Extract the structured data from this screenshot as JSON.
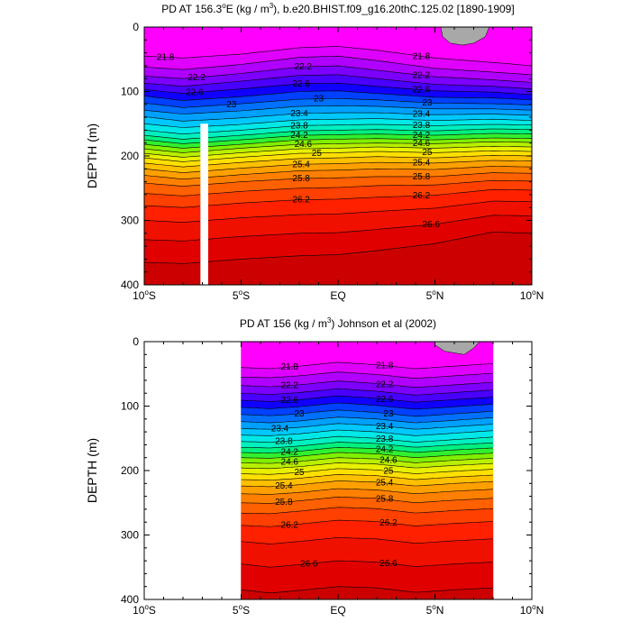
{
  "chart_data": [
    {
      "type": "contour",
      "title": "PD AT 156.3°E (kg / m³), b.e20.BHIST.f09_g16.20thC.125.02 [1890-1909]",
      "title_parts": {
        "pre": "PD AT 156.3",
        "deg": "o",
        "mid": "E (kg / m",
        "sup": "3",
        "post": "), b.e20.BHIST.f09_g16.20thC.125.02 [1890-1909]"
      },
      "ylabel": "DEPTH (m)",
      "xlim": [
        -10,
        10
      ],
      "ylim": [
        0,
        400
      ],
      "y_inverted": true,
      "x_ticks": [
        {
          "v": -10,
          "num": "10",
          "sup": "o",
          "hem": "S"
        },
        {
          "v": -5,
          "num": "5",
          "sup": "o",
          "hem": "S"
        },
        {
          "v": 0,
          "num": "EQ",
          "sup": "",
          "hem": ""
        },
        {
          "v": 5,
          "num": "5",
          "sup": "o",
          "hem": "N"
        },
        {
          "v": 10,
          "num": "10",
          "sup": "o",
          "hem": "N"
        }
      ],
      "y_ticks": [
        "0",
        "100",
        "200",
        "300",
        "400"
      ],
      "x_data_range": [
        -10,
        10
      ],
      "missing_column": [
        -7.1,
        -6.7
      ],
      "land_mask": [
        [
          5.3,
          0
        ],
        [
          5.4,
          15
        ],
        [
          5.8,
          25
        ],
        [
          6.4,
          28
        ],
        [
          7.0,
          25
        ],
        [
          7.6,
          15
        ],
        [
          7.8,
          0
        ]
      ],
      "contour_levels": [
        21.8,
        22.0,
        22.2,
        22.4,
        22.6,
        22.8,
        23.0,
        23.2,
        23.4,
        23.6,
        23.8,
        24.0,
        24.2,
        24.4,
        24.6,
        24.8,
        25.0,
        25.2,
        25.4,
        25.6,
        25.8,
        26.0,
        26.2,
        26.4,
        26.6,
        26.8
      ],
      "contour_depths": [
        {
          "x": -10,
          "d": [
            45,
            62,
            76,
            87,
            97,
            107,
            118,
            129,
            139,
            150,
            160,
            168,
            175,
            182,
            189,
            196,
            203,
            211,
            220,
            230,
            242,
            258,
            277,
            300,
            330,
            365
          ]
        },
        {
          "x": -8,
          "d": [
            48,
            66,
            80,
            92,
            103,
            114,
            125,
            135,
            146,
            156,
            166,
            174,
            181,
            188,
            195,
            202,
            209,
            217,
            226,
            236,
            247,
            262,
            280,
            303,
            332,
            367
          ]
        },
        {
          "x": -5,
          "d": [
            42,
            58,
            72,
            84,
            96,
            108,
            119,
            130,
            141,
            151,
            160,
            168,
            175,
            182,
            188,
            195,
            202,
            210,
            219,
            229,
            240,
            255,
            273,
            296,
            325,
            360
          ]
        },
        {
          "x": -2,
          "d": [
            32,
            47,
            62,
            75,
            88,
            100,
            112,
            123,
            134,
            144,
            153,
            161,
            168,
            175,
            182,
            189,
            196,
            204,
            213,
            223,
            235,
            250,
            268,
            291,
            320,
            355
          ]
        },
        {
          "x": 0,
          "d": [
            30,
            45,
            60,
            74,
            87,
            99,
            111,
            122,
            133,
            143,
            152,
            160,
            167,
            174,
            181,
            188,
            195,
            203,
            212,
            222,
            234,
            249,
            267,
            290,
            319,
            353
          ]
        },
        {
          "x": 2,
          "d": [
            36,
            52,
            67,
            80,
            92,
            103,
            113,
            123,
            133,
            142,
            151,
            159,
            166,
            173,
            180,
            186,
            193,
            201,
            210,
            220,
            232,
            246,
            264,
            286,
            314,
            347
          ]
        },
        {
          "x": 5,
          "d": [
            48,
            64,
            77,
            89,
            99,
            109,
            118,
            127,
            136,
            145,
            153,
            161,
            168,
            175,
            181,
            188,
            195,
            203,
            211,
            221,
            232,
            245,
            261,
            281,
            306,
            336
          ]
        },
        {
          "x": 8,
          "d": [
            55,
            70,
            82,
            92,
            101,
            110,
            119,
            127,
            135,
            143,
            151,
            158,
            165,
            172,
            178,
            185,
            192,
            199,
            207,
            216,
            226,
            238,
            252,
            270,
            292,
            318
          ]
        },
        {
          "x": 10,
          "d": [
            60,
            74,
            86,
            96,
            105,
            113,
            121,
            129,
            137,
            145,
            152,
            159,
            166,
            173,
            179,
            186,
            193,
            200,
            208,
            217,
            227,
            239,
            253,
            271,
            293,
            320
          ]
        }
      ],
      "contour_labels": [
        {
          "text": "21.8",
          "x": -8.9,
          "level": 21.8
        },
        {
          "text": "22.2",
          "x": -7.3,
          "level": 22.2
        },
        {
          "text": "22.6",
          "x": -7.4,
          "level": 22.6
        },
        {
          "text": "23",
          "x": -5.5,
          "level": 23.0
        },
        {
          "text": "22.2",
          "x": -1.8,
          "level": 22.2
        },
        {
          "text": "22.6",
          "x": -1.9,
          "level": 22.6
        },
        {
          "text": "23",
          "x": -1.0,
          "level": 23.0
        },
        {
          "text": "23.4",
          "x": -2.0,
          "level": 23.4
        },
        {
          "text": "23.8",
          "x": -2.0,
          "level": 23.8
        },
        {
          "text": "24.2",
          "x": -2.0,
          "level": 24.2
        },
        {
          "text": "24.6",
          "x": -1.8,
          "level": 24.6
        },
        {
          "text": "25",
          "x": -1.1,
          "level": 25.0
        },
        {
          "text": "25.4",
          "x": -1.9,
          "level": 25.4
        },
        {
          "text": "25.8",
          "x": -1.9,
          "level": 25.8
        },
        {
          "text": "26.2",
          "x": -1.9,
          "level": 26.2
        },
        {
          "text": "21.8",
          "x": 4.3,
          "level": 21.8
        },
        {
          "text": "22.2",
          "x": 4.3,
          "level": 22.2
        },
        {
          "text": "22.6",
          "x": 4.3,
          "level": 22.6
        },
        {
          "text": "23",
          "x": 4.6,
          "level": 23.0
        },
        {
          "text": "23.4",
          "x": 4.3,
          "level": 23.4
        },
        {
          "text": "23.8",
          "x": 4.3,
          "level": 23.8
        },
        {
          "text": "24.2",
          "x": 4.3,
          "level": 24.2
        },
        {
          "text": "24.6",
          "x": 4.3,
          "level": 24.6
        },
        {
          "text": "25",
          "x": 4.6,
          "level": 25.0
        },
        {
          "text": "25.4",
          "x": 4.3,
          "level": 25.4
        },
        {
          "text": "25.8",
          "x": 4.3,
          "level": 25.8
        },
        {
          "text": "26.2",
          "x": 4.3,
          "level": 26.2
        },
        {
          "text": "26.6",
          "x": 4.8,
          "level": 26.6
        }
      ]
    },
    {
      "type": "contour",
      "title": "PD AT 156 (kg / m³) Johnson et al (2002)",
      "title_parts": {
        "pre": "PD AT 156 (kg / m",
        "deg": "",
        "mid": "",
        "sup": "3",
        "post": ") Johnson et al (2002)"
      },
      "ylabel": "DEPTH (m)",
      "xlim": [
        -10,
        10
      ],
      "ylim": [
        0,
        400
      ],
      "y_inverted": true,
      "x_ticks": [
        {
          "v": -10,
          "num": "10",
          "sup": "o",
          "hem": "S"
        },
        {
          "v": -5,
          "num": "5",
          "sup": "o",
          "hem": "S"
        },
        {
          "v": 0,
          "num": "EQ",
          "sup": "",
          "hem": ""
        },
        {
          "v": 5,
          "num": "5",
          "sup": "o",
          "hem": "N"
        },
        {
          "v": 10,
          "num": "10",
          "sup": "o",
          "hem": "N"
        }
      ],
      "y_ticks": [
        "0",
        "100",
        "200",
        "300",
        "400"
      ],
      "x_data_range": [
        -5,
        8
      ],
      "missing_column": null,
      "land_mask": [
        [
          5,
          0
        ],
        [
          5,
          5
        ],
        [
          5.5,
          15
        ],
        [
          6.5,
          20
        ],
        [
          7,
          10
        ],
        [
          7.3,
          0
        ]
      ],
      "contour_levels": [
        21.8,
        22.0,
        22.2,
        22.4,
        22.6,
        22.8,
        23.0,
        23.2,
        23.4,
        23.6,
        23.8,
        24.0,
        24.2,
        24.4,
        24.6,
        24.8,
        25.0,
        25.2,
        25.4,
        25.6,
        25.8,
        26.0,
        26.2,
        26.4,
        26.6,
        26.8
      ],
      "contour_depths": [
        {
          "x": -5,
          "d": [
            40,
            55,
            68,
            80,
            91,
            102,
            113,
            124,
            135,
            145,
            155,
            164,
            172,
            180,
            188,
            196,
            205,
            214,
            224,
            236,
            250,
            266,
            285,
            310,
            345,
            385
          ]
        },
        {
          "x": -3.5,
          "d": [
            42,
            56,
            70,
            82,
            93,
            104,
            115,
            126,
            136,
            146,
            156,
            165,
            173,
            181,
            189,
            197,
            206,
            215,
            225,
            237,
            251,
            267,
            287,
            314,
            350,
            390
          ]
        },
        {
          "x": -2,
          "d": [
            38,
            53,
            67,
            79,
            90,
            101,
            112,
            123,
            133,
            143,
            153,
            162,
            170,
            178,
            186,
            194,
            203,
            212,
            222,
            234,
            247,
            263,
            283,
            310,
            346,
            386
          ]
        },
        {
          "x": 0,
          "d": [
            32,
            47,
            61,
            73,
            84,
            95,
            106,
            117,
            127,
            137,
            147,
            156,
            164,
            172,
            180,
            188,
            197,
            206,
            216,
            228,
            241,
            257,
            277,
            304,
            340,
            380
          ]
        },
        {
          "x": 2,
          "d": [
            36,
            51,
            65,
            77,
            88,
            99,
            110,
            120,
            130,
            140,
            150,
            158,
            166,
            174,
            182,
            190,
            199,
            208,
            218,
            230,
            243,
            259,
            279,
            306,
            342,
            382
          ]
        },
        {
          "x": 4,
          "d": [
            42,
            57,
            71,
            83,
            94,
            105,
            116,
            126,
            136,
            146,
            156,
            164,
            172,
            180,
            188,
            196,
            205,
            214,
            224,
            236,
            250,
            266,
            286,
            313,
            349,
            389
          ]
        },
        {
          "x": 6,
          "d": [
            38,
            53,
            67,
            79,
            90,
            101,
            112,
            122,
            132,
            142,
            152,
            160,
            168,
            176,
            184,
            192,
            201,
            210,
            220,
            232,
            246,
            262,
            282,
            309,
            345,
            385
          ]
        },
        {
          "x": 8,
          "d": [
            34,
            49,
            63,
            75,
            86,
            97,
            108,
            118,
            128,
            138,
            148,
            157,
            165,
            173,
            181,
            189,
            198,
            207,
            217,
            229,
            243,
            259,
            279,
            306,
            342,
            382
          ]
        }
      ],
      "contour_labels": [
        {
          "text": "21.8",
          "x": -2.5,
          "level": 21.8
        },
        {
          "text": "22.2",
          "x": -2.5,
          "level": 22.2
        },
        {
          "text": "22.6",
          "x": -2.5,
          "level": 22.6
        },
        {
          "text": "23",
          "x": -2.0,
          "level": 23.0
        },
        {
          "text": "23.4",
          "x": -3.0,
          "level": 23.4
        },
        {
          "text": "23.8",
          "x": -2.8,
          "level": 23.8
        },
        {
          "text": "24.2",
          "x": -2.5,
          "level": 24.2
        },
        {
          "text": "24.6",
          "x": -2.5,
          "level": 24.6
        },
        {
          "text": "25",
          "x": -2.0,
          "level": 25.0
        },
        {
          "text": "25.4",
          "x": -2.8,
          "level": 25.4
        },
        {
          "text": "25.8",
          "x": -2.8,
          "level": 25.8
        },
        {
          "text": "26.2",
          "x": -2.5,
          "level": 26.2
        },
        {
          "text": "26.6",
          "x": -1.5,
          "level": 26.6
        },
        {
          "text": "21.8",
          "x": 2.4,
          "level": 21.8
        },
        {
          "text": "22.2",
          "x": 2.4,
          "level": 22.2
        },
        {
          "text": "22.6",
          "x": 2.4,
          "level": 22.6
        },
        {
          "text": "23",
          "x": 2.6,
          "level": 23.0
        },
        {
          "text": "23.4",
          "x": 2.4,
          "level": 23.4
        },
        {
          "text": "23.8",
          "x": 2.4,
          "level": 23.8
        },
        {
          "text": "24.2",
          "x": 2.4,
          "level": 24.2
        },
        {
          "text": "24.6",
          "x": 2.6,
          "level": 24.6
        },
        {
          "text": "25",
          "x": 2.6,
          "level": 25.0
        },
        {
          "text": "25.4",
          "x": 2.4,
          "level": 25.4
        },
        {
          "text": "25.8",
          "x": 2.4,
          "level": 25.8
        },
        {
          "text": "26.2",
          "x": 2.6,
          "level": 26.2
        },
        {
          "text": "26.6",
          "x": 2.6,
          "level": 26.6
        }
      ]
    }
  ]
}
